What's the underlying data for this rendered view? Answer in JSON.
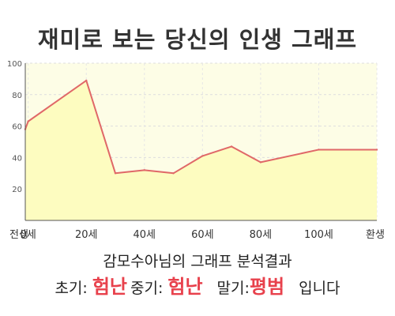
{
  "title": "재미로 보는 당신의 인생 그래프",
  "subtitle": "감모수아님의 그래프 분석결과",
  "summary": {
    "early_label": "초기:",
    "early_value": "험난",
    "middle_label": "중기:",
    "middle_value": "험난",
    "late_label": "말기:",
    "late_value": "평범",
    "ending": "입니다"
  },
  "colors": {
    "line": "#e06868",
    "fill": "#fdfcc0",
    "plot_bg": "#fdfde6",
    "highlight": "#e8414c"
  },
  "chart_data": {
    "type": "area",
    "title": "재미로 보는 당신의 인생 그래프",
    "xlabel": "",
    "ylabel": "",
    "x": [
      -1,
      0,
      20,
      30,
      40,
      50,
      60,
      70,
      80,
      100,
      120
    ],
    "values": [
      58,
      63,
      89,
      30,
      32,
      30,
      41,
      47,
      37,
      45,
      45
    ],
    "xlim": [
      -1,
      120
    ],
    "ylim": [
      0,
      100
    ],
    "y_ticks": [
      20,
      40,
      60,
      80,
      100
    ],
    "x_tick_labels": [
      {
        "x": -1,
        "label": "전생"
      },
      {
        "x": 0,
        "label": "0세"
      },
      {
        "x": 20,
        "label": "20세"
      },
      {
        "x": 40,
        "label": "40세"
      },
      {
        "x": 60,
        "label": "60세"
      },
      {
        "x": 80,
        "label": "80세"
      },
      {
        "x": 100,
        "label": "100세"
      },
      {
        "x": 120,
        "label": "환생"
      }
    ],
    "grid": true,
    "legend": "none"
  }
}
